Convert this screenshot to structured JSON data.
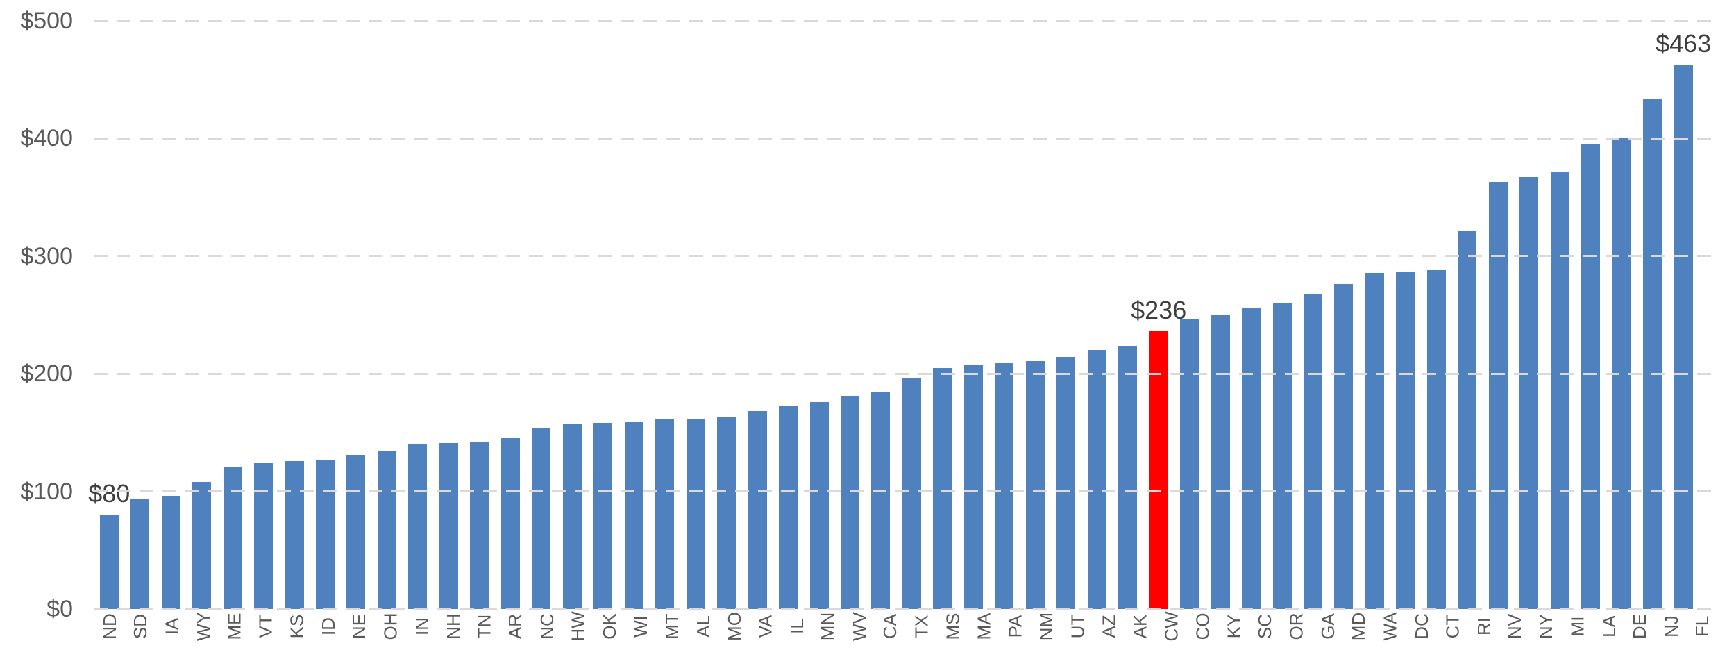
{
  "chart_data": {
    "type": "bar",
    "title": "",
    "xlabel": "",
    "ylabel": "",
    "ylim": [
      0,
      500
    ],
    "grid": "horizontal-dashed",
    "legend": "none",
    "bar_color": "#4E81BD",
    "highlight_category": "CW",
    "highlight_color": "#FF0000",
    "yticks": [
      {
        "value": 0,
        "label": "$0"
      },
      {
        "value": 100,
        "label": "$100"
      },
      {
        "value": 200,
        "label": "$200"
      },
      {
        "value": 300,
        "label": "$300"
      },
      {
        "value": 400,
        "label": "$400"
      },
      {
        "value": 500,
        "label": "$500"
      }
    ],
    "categories": [
      "ND",
      "SD",
      "IA",
      "WY",
      "ME",
      "VT",
      "KS",
      "ID",
      "NE",
      "OH",
      "IN",
      "NH",
      "TN",
      "AR",
      "NC",
      "HW",
      "OK",
      "WI",
      "MT",
      "AL",
      "MO",
      "VA",
      "IL",
      "MN",
      "WV",
      "CA",
      "TX",
      "MS",
      "MA",
      "PA",
      "NM",
      "UT",
      "AZ",
      "AK",
      "CW",
      "CO",
      "KY",
      "SC",
      "OR",
      "GA",
      "MD",
      "WA",
      "DC",
      "CT",
      "RI",
      "NV",
      "NY",
      "MI",
      "LA",
      "DE",
      "NJ",
      "FL"
    ],
    "values": [
      80,
      94,
      96,
      108,
      121,
      124,
      126,
      127,
      131,
      134,
      140,
      141,
      142,
      145,
      154,
      157,
      158,
      159,
      161,
      162,
      163,
      168,
      173,
      176,
      181,
      184,
      196,
      205,
      207,
      209,
      211,
      214,
      220,
      224,
      236,
      247,
      250,
      256,
      260,
      268,
      276,
      286,
      287,
      288,
      321,
      363,
      367,
      372,
      395,
      400,
      434,
      463
    ],
    "data_labels": [
      {
        "category": "ND",
        "text": "$80"
      },
      {
        "category": "CW",
        "text": "$236"
      },
      {
        "category": "FL",
        "text": "$463"
      }
    ]
  },
  "colors": {
    "background": "#FFFFFF",
    "gridline": "#D9D9D9",
    "axis_text": "#595959",
    "data_label_text": "#3F3F3F",
    "bar_blue": "#4E81BD",
    "bar_red": "#FF0000"
  }
}
